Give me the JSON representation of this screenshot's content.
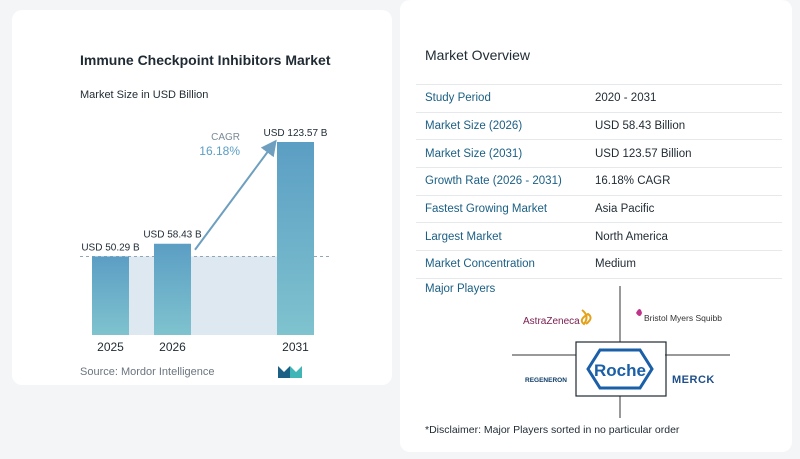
{
  "chart_data": {
    "type": "bar",
    "title": "Immune Checkpoint Inhibitors Market",
    "subtitle": "Market Size in USD Billion",
    "categories": [
      "2025",
      "2026",
      "2031"
    ],
    "values": [
      50.29,
      58.43,
      123.57
    ],
    "value_labels": [
      "USD 50.29 B",
      "USD 58.43 B",
      "USD 123.57 B"
    ],
    "cagr_label": "CAGR",
    "cagr_value": "16.18%",
    "colors": {
      "bar_top": "#5b9ec4",
      "bar_bottom": "#7fc3cf",
      "band": "#dde8f1",
      "arrow": "#6e9fbf",
      "cagr_text": "#5b9ec4"
    }
  },
  "source": "Source:  Mordor Intelligence",
  "overview": {
    "title": "Market Overview",
    "rows": [
      {
        "key": "Study Period",
        "value": "2020 - 2031"
      },
      {
        "key": "Market Size (2026)",
        "value": "USD 58.43 Billion"
      },
      {
        "key": "Market Size (2031)",
        "value": "USD 123.57 Billion"
      },
      {
        "key": "Growth Rate (2026 - 2031)",
        "value": "16.18% CAGR"
      },
      {
        "key": "Fastest Growing Market",
        "value": "Asia Pacific"
      },
      {
        "key": "Largest Market",
        "value": "North America"
      },
      {
        "key": "Market Concentration",
        "value": "Medium"
      }
    ]
  },
  "players": {
    "title": "Major Players",
    "names": [
      "AstraZeneca",
      "Bristol Myers Squibb",
      "Roche",
      "REGENERON",
      "MERCK"
    ]
  },
  "disclaimer": "*Disclaimer: Major Players sorted in no particular order"
}
